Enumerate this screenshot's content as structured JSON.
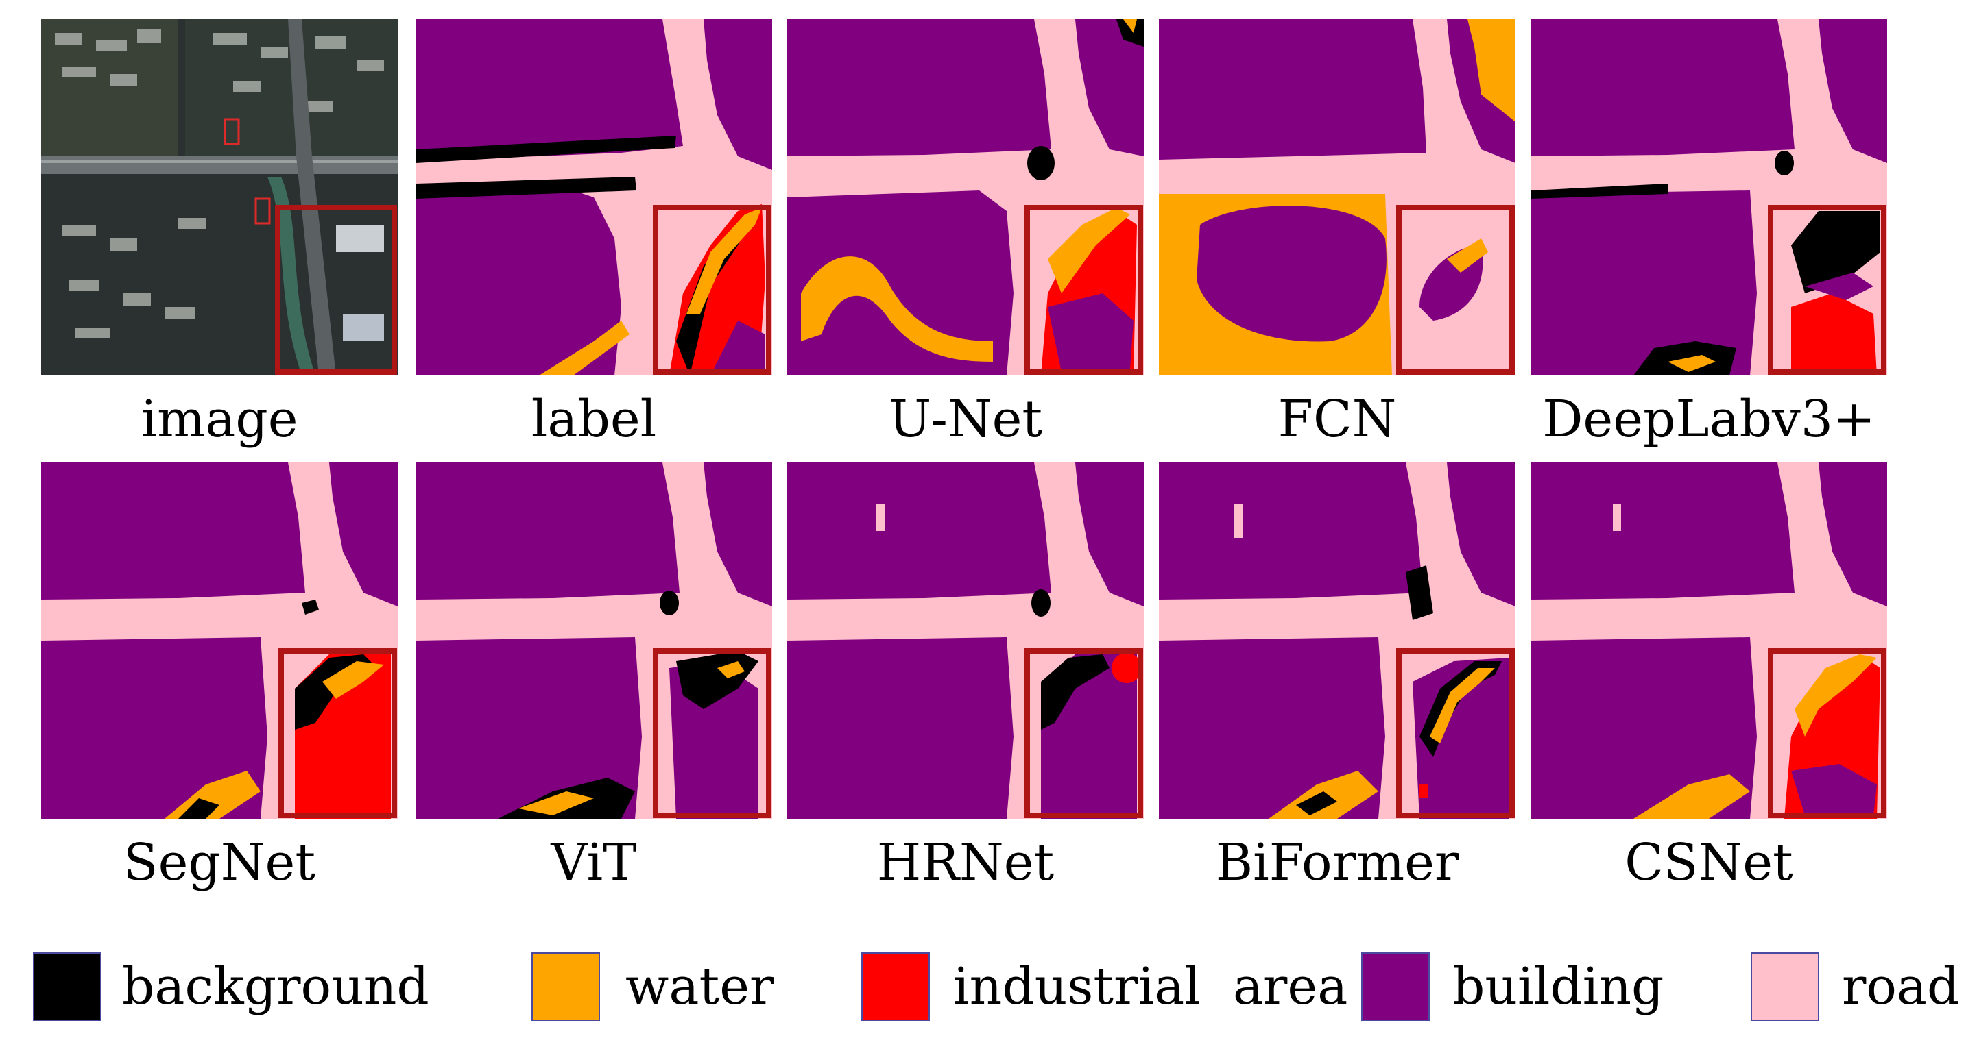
{
  "colors": {
    "background": "#000000",
    "water": "#FFA500",
    "industrial_area": "#FF0000",
    "building": "#800080",
    "road": "#FFC0CB",
    "zoom_box": "#B01515"
  },
  "panels_row1": [
    {
      "id": "image",
      "caption": "image"
    },
    {
      "id": "label",
      "caption": "label"
    },
    {
      "id": "unet",
      "caption": "U-Net"
    },
    {
      "id": "fcn",
      "caption": "FCN"
    },
    {
      "id": "deeplab",
      "caption": "DeepLabv3+"
    }
  ],
  "panels_row2": [
    {
      "id": "segnet",
      "caption": "SegNet"
    },
    {
      "id": "vit",
      "caption": "ViT"
    },
    {
      "id": "hrnet",
      "caption": "HRNet"
    },
    {
      "id": "biformer",
      "caption": "BiFormer"
    },
    {
      "id": "csnet",
      "caption": "CSNet"
    }
  ],
  "legend": [
    {
      "key": "background",
      "label": "background",
      "color": "#000000"
    },
    {
      "key": "water",
      "label": "water",
      "color": "#FFA500"
    },
    {
      "key": "industrial_area",
      "label": "industrial  area",
      "color": "#FF0000"
    },
    {
      "key": "building",
      "label": "building",
      "color": "#800080"
    },
    {
      "key": "road",
      "label": "road",
      "color": "#FFC0CB"
    }
  ]
}
